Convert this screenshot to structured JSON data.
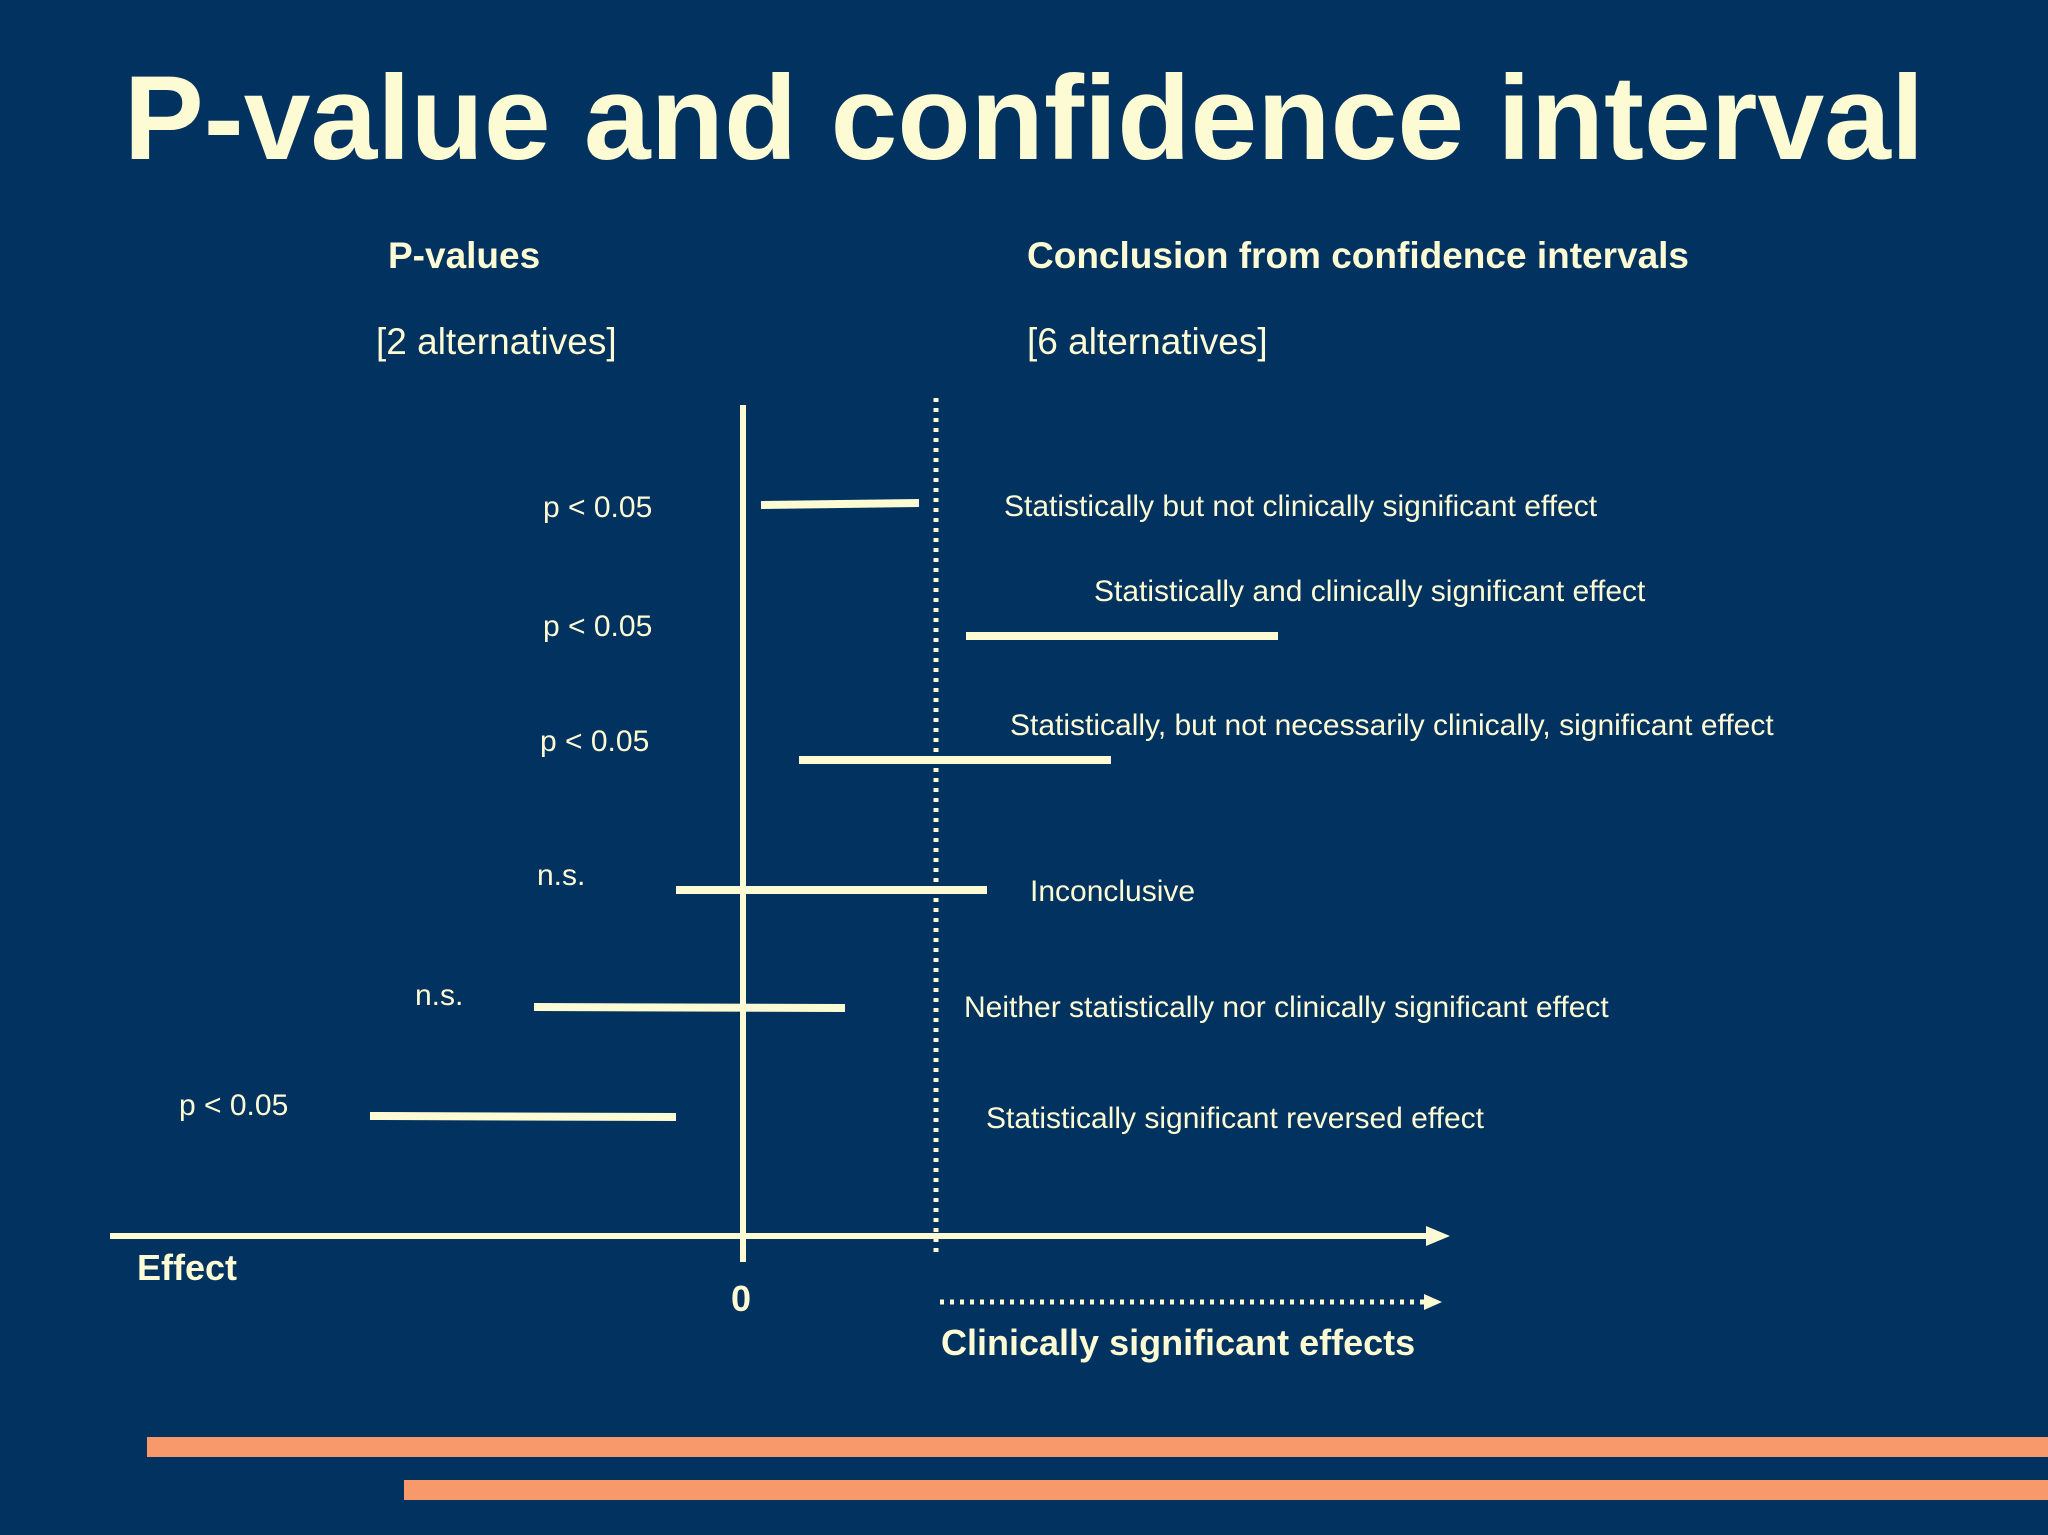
{
  "slide": {
    "title": "P-value and confidence interval",
    "left_column": {
      "heading": "P-values",
      "subheading": "[2 alternatives]"
    },
    "right_column": {
      "heading": "Conclusion from confidence intervals",
      "subheading": "[6 alternatives]"
    },
    "rows": [
      {
        "p_label": "p < 0.05",
        "conclusion": "Statistically but not clinically significant effect"
      },
      {
        "p_label": "p < 0.05",
        "conclusion": "Statistically and clinically significant effect"
      },
      {
        "p_label": "p < 0.05",
        "conclusion": "Statistically, but not necessarily clinically, significant effect"
      },
      {
        "p_label": "n.s.",
        "conclusion": "Inconclusive"
      },
      {
        "p_label": "n.s.",
        "conclusion": "Neither statistically nor clinically significant effect"
      },
      {
        "p_label": "p < 0.05",
        "conclusion": "Statistically significant reversed effect"
      }
    ],
    "axis": {
      "effect_label": "Effect",
      "zero_label": "0",
      "clinical_label": "Clinically significant effects"
    },
    "colors": {
      "background": "#02325f",
      "foreground": "#fdfbd4",
      "accent_stripe": "#f7996b"
    }
  }
}
